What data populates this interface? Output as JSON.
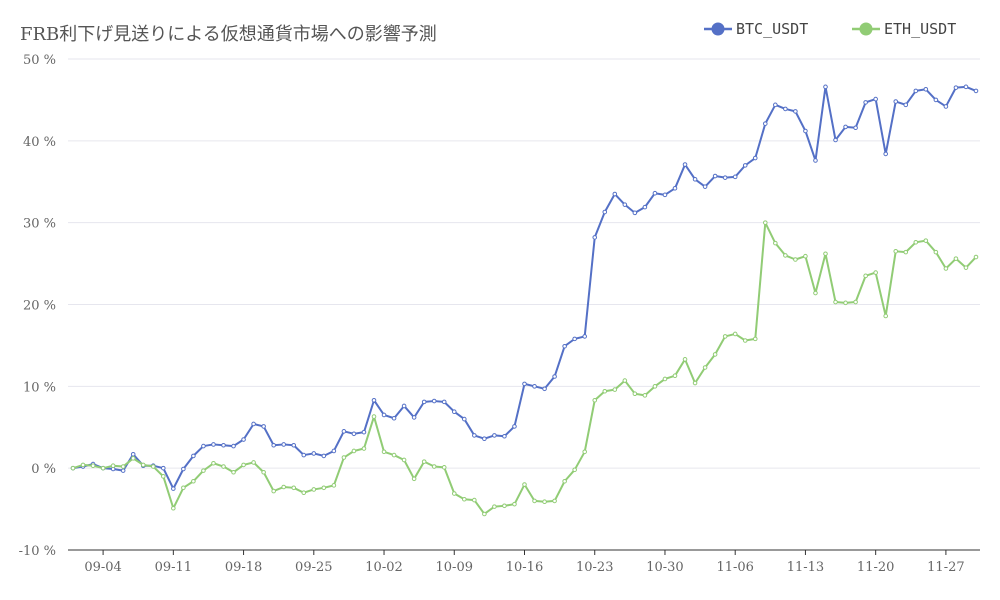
{
  "chart_data": {
    "type": "line",
    "title": "FRB利下げ見送りによる仮想通貨市場への影響予測",
    "xlabel": "",
    "ylabel": "",
    "ylim": [
      -10,
      50
    ],
    "yticks": [
      -10,
      0,
      10,
      20,
      30,
      40,
      50
    ],
    "y_tick_suffix": " %",
    "grid": true,
    "legend_position": "top-right",
    "x_start": "2024-09-01",
    "x_end": "2024-11-30",
    "x_tick_labels": [
      "09-04",
      "09-11",
      "09-18",
      "09-25",
      "10-02",
      "10-09",
      "10-16",
      "10-23",
      "10-30",
      "11-06",
      "11-13",
      "11-20",
      "11-27"
    ],
    "x_tick_dates": [
      "2024-09-04",
      "2024-09-11",
      "2024-09-18",
      "2024-09-25",
      "2024-10-02",
      "2024-10-09",
      "2024-10-16",
      "2024-10-23",
      "2024-10-30",
      "2024-11-06",
      "2024-11-13",
      "2024-11-20",
      "2024-11-27"
    ],
    "series": [
      {
        "name": "BTC_USDT",
        "color": "#5470c6",
        "values": [
          0.0,
          0.2,
          0.5,
          0.0,
          -0.1,
          -0.3,
          1.7,
          0.3,
          0.3,
          0.0,
          -2.5,
          -0.1,
          1.5,
          2.7,
          2.9,
          2.8,
          2.7,
          3.5,
          5.4,
          5.1,
          2.8,
          2.9,
          2.8,
          1.6,
          1.8,
          1.5,
          2.1,
          4.5,
          4.2,
          4.4,
          8.3,
          6.5,
          6.1,
          7.6,
          6.2,
          8.1,
          8.2,
          8.1,
          6.9,
          6.0,
          4.0,
          3.6,
          4.0,
          3.9,
          5.1,
          10.3,
          10.0,
          9.7,
          11.2,
          14.9,
          15.8,
          16.1,
          28.2,
          31.3,
          33.5,
          32.2,
          31.2,
          31.9,
          33.6,
          33.4,
          34.2,
          37.1,
          35.3,
          34.4,
          35.7,
          35.5,
          35.6,
          37.0,
          37.9,
          42.1,
          44.4,
          43.9,
          43.6,
          41.2,
          37.6,
          46.6,
          40.1,
          41.7,
          41.6,
          44.7,
          45.1,
          38.4,
          44.8,
          44.4,
          46.1,
          46.3,
          45.0,
          44.2,
          46.5,
          46.6,
          46.1
        ]
      },
      {
        "name": "ETH_USDT",
        "color": "#91cc75",
        "values": [
          0.0,
          0.4,
          0.3,
          0.0,
          0.3,
          0.2,
          1.2,
          0.4,
          0.2,
          -1.0,
          -4.9,
          -2.4,
          -1.6,
          -0.3,
          0.6,
          0.2,
          -0.5,
          0.4,
          0.7,
          -0.5,
          -2.8,
          -2.3,
          -2.4,
          -3.0,
          -2.6,
          -2.4,
          -2.1,
          1.3,
          2.1,
          2.4,
          6.3,
          2.0,
          1.6,
          1.0,
          -1.3,
          0.8,
          0.2,
          0.1,
          -3.1,
          -3.8,
          -3.9,
          -5.6,
          -4.7,
          -4.6,
          -4.4,
          -2.0,
          -4.0,
          -4.1,
          -4.0,
          -1.6,
          -0.2,
          2.0,
          8.3,
          9.4,
          9.6,
          10.7,
          9.1,
          8.9,
          10.0,
          10.9,
          11.3,
          13.3,
          10.4,
          12.3,
          13.9,
          16.1,
          16.4,
          15.6,
          15.8,
          30.0,
          27.5,
          26.0,
          25.5,
          25.9,
          21.4,
          26.2,
          20.3,
          20.2,
          20.3,
          23.5,
          23.9,
          18.6,
          26.5,
          26.4,
          27.6,
          27.8,
          26.4,
          24.4,
          25.6,
          24.5,
          25.8
        ]
      }
    ]
  }
}
